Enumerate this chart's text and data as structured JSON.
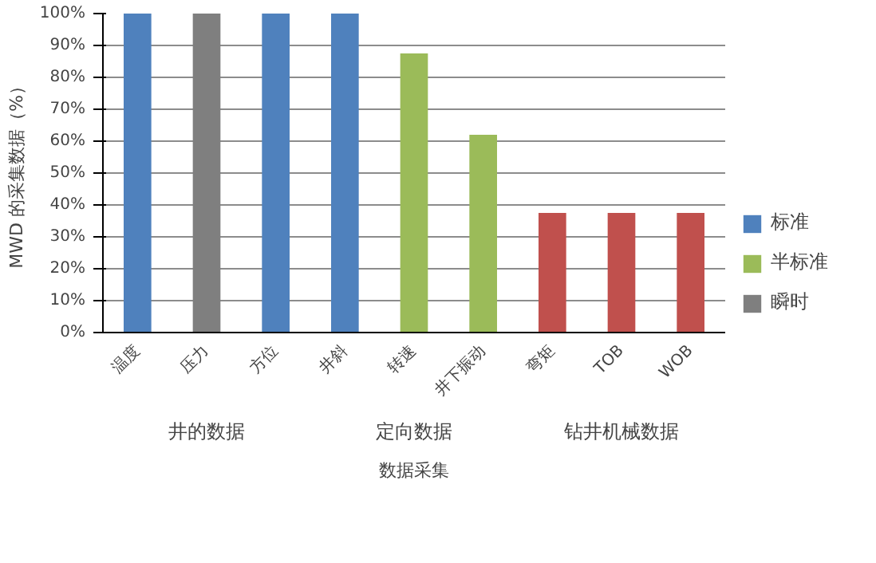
{
  "chart_data": {
    "type": "bar",
    "xlabel": "数据采集",
    "ylabel": "MWD 的采集数据（%）",
    "categories": [
      "温度",
      "压力",
      "方位",
      "井斜",
      "转速",
      "井下振动",
      "弯矩",
      "TOB",
      "WOB"
    ],
    "series": [
      {
        "name": "标准",
        "color": "#4f81bd",
        "values": [
          100,
          null,
          100,
          100,
          null,
          null,
          null,
          null,
          null
        ]
      },
      {
        "name": "半标准",
        "color": "#9bbb59",
        "values": [
          null,
          null,
          null,
          null,
          87.5,
          62,
          null,
          null,
          null
        ]
      },
      {
        "name": "瞬时",
        "color": "#7f7f7f",
        "values": [
          null,
          100,
          null,
          null,
          null,
          null,
          null,
          null,
          null
        ]
      },
      {
        "color": "#c0504d",
        "values": [
          null,
          null,
          null,
          null,
          null,
          null,
          37.5,
          37.5,
          37.5
        ]
      }
    ],
    "ylim": [
      0,
      100
    ],
    "yticks": [
      {
        "value": 0,
        "label": "0%"
      },
      {
        "value": 10,
        "label": "10%"
      },
      {
        "value": 20,
        "label": "20%"
      },
      {
        "value": 30,
        "label": "30%"
      },
      {
        "value": 40,
        "label": "40%"
      },
      {
        "value": 50,
        "label": "50%"
      },
      {
        "value": 60,
        "label": "60%"
      },
      {
        "value": 70,
        "label": "70%"
      },
      {
        "value": 80,
        "label": "80%"
      },
      {
        "value": 90,
        "label": "90%"
      },
      {
        "value": 100,
        "label": "100%"
      }
    ],
    "grid": "y",
    "legend": "right",
    "annotations": [
      "井的数据",
      "定向数据",
      "钻井机械数据"
    ]
  }
}
